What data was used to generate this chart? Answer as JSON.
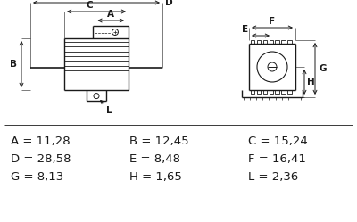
{
  "bg_color": "#ffffff",
  "line_color": "#1a1a1a",
  "dim_params": [
    {
      "label": "A",
      "value": "11,28"
    },
    {
      "label": "B",
      "value": "12,45"
    },
    {
      "label": "C",
      "value": "15,24"
    },
    {
      "label": "D",
      "value": "28,58"
    },
    {
      "label": "E",
      "value": "8,48"
    },
    {
      "label": "F",
      "value": "16,41"
    },
    {
      "label": "G",
      "value": "8,13"
    },
    {
      "label": "H",
      "value": "1,65"
    },
    {
      "label": "L",
      "value": "2,36"
    }
  ],
  "font_size_dims": 9.5
}
